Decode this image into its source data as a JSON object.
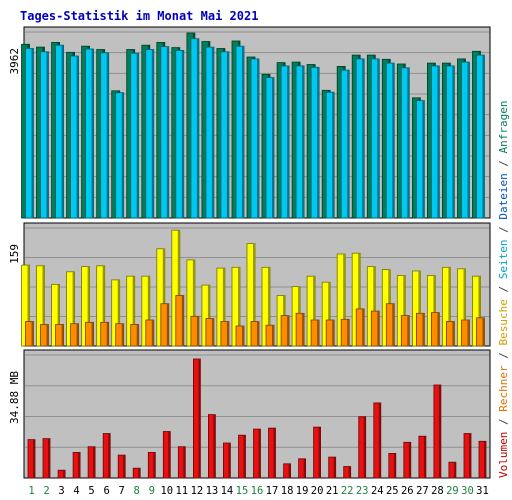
{
  "title": "Tages-Statistik im Monat Mai 2021",
  "side_label": [
    {
      "text": "Volumen",
      "color": "#c00000"
    },
    {
      "text": " / ",
      "color": "#444444"
    },
    {
      "text": "Rechner",
      "color": "#e07000"
    },
    {
      "text": " / ",
      "color": "#444444"
    },
    {
      "text": "Besuche",
      "color": "#d0a000"
    },
    {
      "text": " / ",
      "color": "#444444"
    },
    {
      "text": "Seiten",
      "color": "#00a0c0"
    },
    {
      "text": " / ",
      "color": "#444444"
    },
    {
      "text": "Dateien",
      "color": "#0050c0"
    },
    {
      "text": " / ",
      "color": "#444444"
    },
    {
      "text": "Anfragen",
      "color": "#008060"
    }
  ],
  "colors": {
    "background": "#ffffff",
    "panel": "#c0c0c0",
    "grid": "#909090",
    "anfragen": "#00805a",
    "dateien": "#00c8f0",
    "besuche": "#ffff00",
    "rechner": "#ff8c00",
    "volumen": "#e81010",
    "weekday_label": "#000000",
    "weekend_label": "#208040"
  },
  "chart_data": [
    {
      "type": "bar",
      "panel": "top",
      "ytick_label": "3962",
      "ylim": [
        0,
        3962
      ],
      "categories": [
        "1",
        "2",
        "3",
        "4",
        "5",
        "6",
        "7",
        "8",
        "9",
        "10",
        "11",
        "12",
        "13",
        "14",
        "15",
        "16",
        "17",
        "18",
        "19",
        "20",
        "21",
        "22",
        "23",
        "24",
        "25",
        "26",
        "27",
        "28",
        "29",
        "30",
        "31"
      ],
      "weekend": [
        1,
        2,
        8,
        9,
        15,
        16,
        22,
        23,
        29,
        30
      ],
      "series": [
        {
          "name": "Anfragen",
          "values": [
            3700,
            3640,
            3740,
            3530,
            3660,
            3590,
            2710,
            3590,
            3680,
            3740,
            3630,
            3940,
            3760,
            3610,
            3770,
            3430,
            3060,
            3310,
            3320,
            3270,
            2720,
            3230,
            3470,
            3470,
            3380,
            3280,
            2560,
            3300,
            3300,
            3390,
            3550
          ]
        },
        {
          "name": "Dateien",
          "values": [
            3610,
            3540,
            3680,
            3450,
            3600,
            3520,
            2670,
            3510,
            3590,
            3650,
            3570,
            3820,
            3640,
            3540,
            3660,
            3390,
            2990,
            3240,
            3240,
            3210,
            2680,
            3150,
            3390,
            3390,
            3300,
            3200,
            2500,
            3240,
            3240,
            3320,
            3470
          ]
        }
      ]
    },
    {
      "type": "bar",
      "panel": "middle",
      "ytick_label": "159",
      "ylim": [
        0,
        159
      ],
      "categories": [
        "1",
        "2",
        "3",
        "4",
        "5",
        "6",
        "7",
        "8",
        "9",
        "10",
        "11",
        "12",
        "13",
        "14",
        "15",
        "16",
        "17",
        "18",
        "19",
        "20",
        "21",
        "22",
        "23",
        "24",
        "25",
        "26",
        "27",
        "28",
        "29",
        "30",
        "31"
      ],
      "weekend": [
        1,
        2,
        8,
        9,
        15,
        16,
        22,
        23,
        29,
        30
      ],
      "series": [
        {
          "name": "Besuche",
          "values": [
            109,
            108,
            83,
            100,
            107,
            108,
            89,
            94,
            94,
            131,
            156,
            116,
            82,
            105,
            106,
            138,
            106,
            68,
            80,
            94,
            86,
            124,
            125,
            107,
            103,
            95,
            101,
            95,
            106,
            104,
            94
          ]
        },
        {
          "name": "Rechner",
          "values": [
            33,
            29,
            29,
            30,
            32,
            32,
            30,
            29,
            35,
            57,
            68,
            40,
            37,
            33,
            27,
            33,
            28,
            41,
            44,
            35,
            35,
            36,
            50,
            47,
            57,
            41,
            44,
            45,
            33,
            35,
            38
          ]
        }
      ]
    },
    {
      "type": "bar",
      "panel": "bottom",
      "ytick_label": "34.88 MB",
      "ylim": [
        0,
        36.5
      ],
      "categories": [
        "1",
        "2",
        "3",
        "4",
        "5",
        "6",
        "7",
        "8",
        "9",
        "10",
        "11",
        "12",
        "13",
        "14",
        "15",
        "16",
        "17",
        "18",
        "19",
        "20",
        "21",
        "22",
        "23",
        "24",
        "25",
        "26",
        "27",
        "28",
        "29",
        "30",
        "31"
      ],
      "weekend": [
        1,
        2,
        8,
        9,
        15,
        16,
        22,
        23,
        29,
        30
      ],
      "series": [
        {
          "name": "Volumen",
          "values": [
            11.4,
            11.7,
            2.3,
            7.6,
            9.3,
            13.2,
            6.8,
            2.9,
            7.6,
            13.8,
            9.3,
            35.3,
            18.8,
            10.4,
            12.7,
            14.5,
            14.8,
            4.2,
            5.7,
            15.1,
            6.2,
            3.4,
            18.2,
            22.3,
            7.3,
            10.6,
            12.4,
            27.6,
            4.7,
            13.2,
            10.9
          ]
        }
      ]
    }
  ]
}
